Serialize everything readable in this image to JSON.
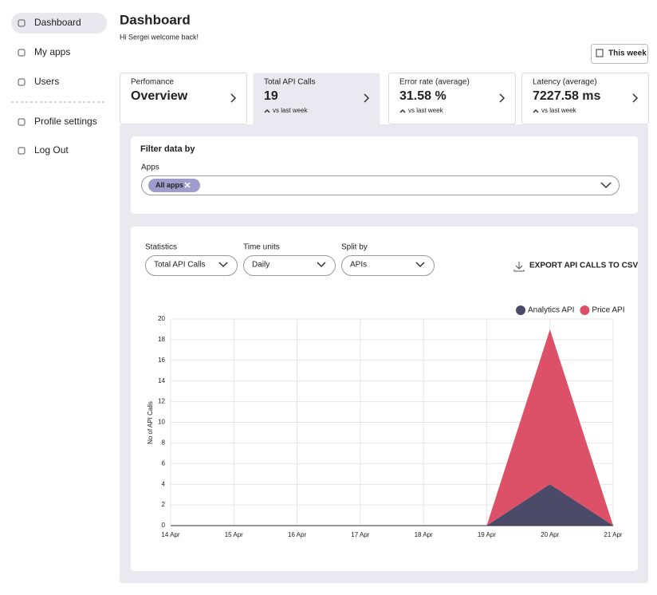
{
  "sidebar": {
    "items": [
      "Dashboard",
      "My apps",
      "Users",
      "Profile settings",
      "Log Out"
    ]
  },
  "header": {
    "title": "Dashboard",
    "subtitle": "Hi Sergei welcome back!",
    "range_button": "This week"
  },
  "cards": [
    {
      "label": "Perfomance",
      "value": "Overview"
    },
    {
      "label": "Total API Calls",
      "value": "19",
      "delta": "vs last week"
    },
    {
      "label": "Error rate (average)",
      "value": "31.58 %",
      "delta": "vs last week"
    },
    {
      "label": "Latency (average)",
      "value": "7227.58 ms",
      "delta": "vs last week"
    }
  ],
  "filter": {
    "title": "Filter data by",
    "apps_label": "Apps",
    "chip": "All apps"
  },
  "controls": [
    {
      "label": "Statistics",
      "value": "Total API Calls"
    },
    {
      "label": "Time units",
      "value": "Daily"
    },
    {
      "label": "Split by",
      "value": "APIs"
    }
  ],
  "export": "EXPORT API CALLS TO CSV",
  "chart_data": {
    "type": "area",
    "stacked": true,
    "y_label": "No of API Calls",
    "categories": [
      "14 Apr",
      "15 Apr",
      "16 Apr",
      "17 Apr",
      "18 Apr",
      "19 Apr",
      "20 Apr",
      "21 Apr"
    ],
    "series": [
      {
        "name": "Analytics API",
        "color": "#4b4a68",
        "values": [
          0,
          0,
          0,
          0,
          0,
          0,
          4,
          0
        ]
      },
      {
        "name": "Price API",
        "color": "#dc5068",
        "values": [
          0,
          0,
          0,
          0,
          0,
          0,
          15,
          0
        ]
      }
    ],
    "ylim": [
      0,
      20
    ],
    "yticks": [
      0,
      2,
      4,
      6,
      8,
      10,
      12,
      14,
      16,
      18,
      20
    ],
    "grid": true,
    "legend": "top-right"
  }
}
